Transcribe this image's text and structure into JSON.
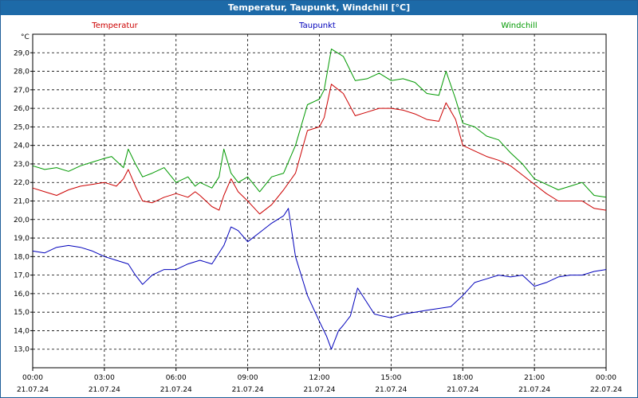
{
  "header": {
    "title": "Temperatur, Taupunkt, Windchill [°C]"
  },
  "chart_data": {
    "type": "line",
    "title": "Temperatur, Taupunkt, Windchill [°C]",
    "ylabel": "°C",
    "ylim": [
      12.0,
      30.0
    ],
    "xlim": [
      0,
      24
    ],
    "yticks": [
      13.0,
      14.0,
      15.0,
      16.0,
      17.0,
      18.0,
      19.0,
      20.0,
      21.0,
      22.0,
      23.0,
      24.0,
      25.0,
      26.0,
      27.0,
      28.0,
      29.0
    ],
    "ytick_labels": [
      "13,0",
      "14,0",
      "15,0",
      "16,0",
      "17,0",
      "18,0",
      "19,0",
      "20,0",
      "21,0",
      "22,0",
      "23,0",
      "24,0",
      "25,0",
      "26,0",
      "27,0",
      "28,0",
      "29,0"
    ],
    "xticks": [
      0,
      3,
      6,
      9,
      12,
      15,
      18,
      21,
      24
    ],
    "xtick_times": [
      "00:00",
      "03:00",
      "06:00",
      "09:00",
      "12:00",
      "15:00",
      "18:00",
      "21:00",
      "00:00"
    ],
    "xtick_dates": [
      "21.07.24",
      "21.07.24",
      "21.07.24",
      "21.07.24",
      "21.07.24",
      "21.07.24",
      "21.07.24",
      "21.07.24",
      "22.07.24"
    ],
    "grid": true,
    "series": [
      {
        "name": "Temperatur",
        "color": "#cc0000",
        "x": [
          0,
          0.5,
          1,
          1.5,
          2,
          2.5,
          3,
          3.5,
          3.8,
          4,
          4.3,
          4.6,
          5,
          5.5,
          6,
          6.5,
          6.8,
          7,
          7.5,
          7.8,
          8,
          8.3,
          8.6,
          9,
          9.5,
          10,
          10.5,
          11,
          11.5,
          12,
          12.2,
          12.5,
          13,
          13.5,
          14,
          14.5,
          15,
          15.5,
          16,
          16.5,
          17,
          17.3,
          17.7,
          18,
          18.5,
          19,
          19.5,
          20,
          20.5,
          21,
          21.5,
          22,
          22.5,
          23,
          23.5,
          24
        ],
        "values": [
          21.7,
          21.5,
          21.3,
          21.6,
          21.8,
          21.9,
          22.0,
          21.8,
          22.2,
          22.7,
          21.8,
          21.0,
          20.9,
          21.2,
          21.4,
          21.2,
          21.5,
          21.3,
          20.7,
          20.5,
          21.3,
          22.2,
          21.5,
          21.0,
          20.3,
          20.8,
          21.6,
          22.5,
          24.8,
          25.0,
          25.5,
          27.3,
          26.8,
          25.6,
          25.8,
          26.0,
          26.0,
          25.9,
          25.7,
          25.4,
          25.3,
          26.3,
          25.4,
          24.0,
          23.7,
          23.4,
          23.2,
          22.9,
          22.4,
          21.9,
          21.4,
          21.0,
          21.0,
          21.0,
          20.6,
          20.5
        ]
      },
      {
        "name": "Taupunkt",
        "color": "#0000bb",
        "x": [
          0,
          0.5,
          1,
          1.5,
          2,
          2.5,
          3,
          3.5,
          4,
          4.3,
          4.6,
          5,
          5.5,
          6,
          6.5,
          7,
          7.5,
          8,
          8.3,
          8.6,
          9,
          9.5,
          10,
          10.5,
          10.7,
          11,
          11.5,
          12,
          12.3,
          12.5,
          12.8,
          13,
          13.3,
          13.6,
          14,
          14.3,
          14.6,
          15,
          15.5,
          16,
          16.5,
          17,
          17.5,
          18,
          18.5,
          19,
          19.5,
          20,
          20.5,
          21,
          21.5,
          22,
          22.5,
          23,
          23.5,
          24
        ],
        "values": [
          18.3,
          18.2,
          18.5,
          18.6,
          18.5,
          18.3,
          18.0,
          17.8,
          17.6,
          17.0,
          16.5,
          17.0,
          17.3,
          17.3,
          17.6,
          17.8,
          17.6,
          18.6,
          19.6,
          19.4,
          18.8,
          19.3,
          19.8,
          20.2,
          20.6,
          18.0,
          15.9,
          14.5,
          13.7,
          13.0,
          14.0,
          14.3,
          14.8,
          16.3,
          15.5,
          14.9,
          14.8,
          14.7,
          14.9,
          15.0,
          15.1,
          15.2,
          15.3,
          15.9,
          16.6,
          16.8,
          17.0,
          16.9,
          17.0,
          16.4,
          16.6,
          16.9,
          17.0,
          17.0,
          17.2,
          17.3
        ]
      },
      {
        "name": "Windchill",
        "color": "#009900",
        "x": [
          0,
          0.5,
          1,
          1.5,
          2,
          2.5,
          3,
          3.3,
          3.8,
          4,
          4.3,
          4.6,
          5,
          5.5,
          6,
          6.5,
          6.8,
          7,
          7.5,
          7.8,
          8,
          8.3,
          8.6,
          9,
          9.5,
          10,
          10.5,
          11,
          11.5,
          12,
          12.2,
          12.5,
          13,
          13.5,
          14,
          14.5,
          15,
          15.5,
          16,
          16.5,
          17,
          17.3,
          17.7,
          18,
          18.5,
          19,
          19.5,
          20,
          20.5,
          21,
          21.5,
          22,
          22.5,
          23,
          23.5,
          24
        ],
        "values": [
          22.9,
          22.7,
          22.8,
          22.6,
          22.9,
          23.1,
          23.3,
          23.4,
          22.8,
          23.8,
          23.0,
          22.3,
          22.5,
          22.8,
          22.0,
          22.3,
          21.8,
          22.0,
          21.7,
          22.3,
          23.8,
          22.5,
          22.0,
          22.3,
          21.5,
          22.3,
          22.5,
          24.0,
          26.2,
          26.5,
          27.0,
          29.2,
          28.8,
          27.5,
          27.6,
          27.9,
          27.5,
          27.6,
          27.4,
          26.8,
          26.7,
          28.0,
          26.5,
          25.2,
          25.0,
          24.5,
          24.3,
          23.6,
          23.0,
          22.2,
          21.9,
          21.6,
          21.8,
          22.0,
          21.3,
          21.2
        ]
      }
    ]
  }
}
